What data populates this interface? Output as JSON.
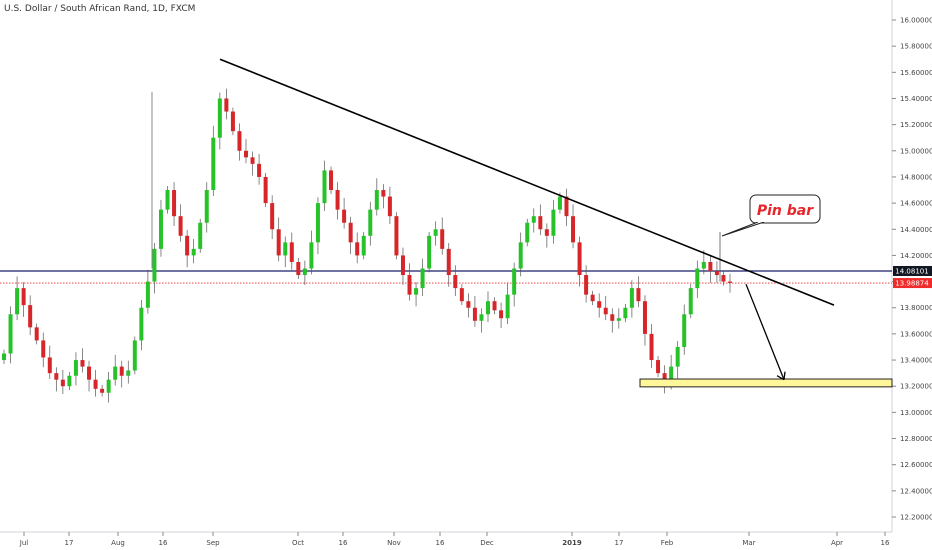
{
  "chart_data": {
    "type": "candlestick",
    "title": "U.S. Dollar / South African Rand, 1D, FXCM",
    "y_axis": {
      "side": "right",
      "ylim": [
        12.1,
        16.1
      ],
      "ticks": [
        "16.00000",
        "15.80000",
        "15.60000",
        "15.40000",
        "15.20000",
        "15.00000",
        "14.80000",
        "14.60000",
        "14.40000",
        "14.20000",
        "14.00000",
        "13.80000",
        "13.60000",
        "13.40000",
        "13.20000",
        "13.00000",
        "12.80000",
        "12.60000",
        "12.40000",
        "12.20000"
      ]
    },
    "x_axis": {
      "ticks": [
        "Jul",
        "17",
        "Aug",
        "16",
        "Sep",
        "Oct",
        "16",
        "Nov",
        "16",
        "Dec",
        "2019",
        "17",
        "Feb",
        "Mar",
        "Apr",
        "16"
      ]
    },
    "price_labels": [
      {
        "value": "14.08101",
        "role": "horizontal-level",
        "color": "#131722"
      },
      {
        "value": "13.98874",
        "role": "last-price",
        "color": "#ef2b2b"
      }
    ],
    "annotations": [
      {
        "type": "callout",
        "text": "Pin bar",
        "color": "#e6262a"
      },
      {
        "type": "trendline",
        "from": [
          "Sep",
          15.7
        ],
        "to": [
          "Apr",
          13.82
        ],
        "color": "#000000"
      },
      {
        "type": "arrow",
        "from": [
          "Feb 28",
          13.98
        ],
        "to": [
          "Mar 13",
          13.24
        ],
        "color": "#000000"
      },
      {
        "type": "zone",
        "low": 13.19,
        "high": 13.25,
        "from": "Jan 24",
        "to": "end",
        "color": "#fff79a"
      }
    ],
    "candles_close_path": [
      13.45,
      13.75,
      13.95,
      13.82,
      13.65,
      13.55,
      13.42,
      13.3,
      13.25,
      13.2,
      13.28,
      13.4,
      13.35,
      13.25,
      13.18,
      13.15,
      13.25,
      13.35,
      13.28,
      13.32,
      13.55,
      13.8,
      14.0,
      14.25,
      14.55,
      14.7,
      14.5,
      14.35,
      14.2,
      14.25,
      14.45,
      14.7,
      15.1,
      15.4,
      15.3,
      15.15,
      15.0,
      14.95,
      14.9,
      14.8,
      14.6,
      14.4,
      14.2,
      14.3,
      14.15,
      14.05,
      14.1,
      14.3,
      14.6,
      14.85,
      14.7,
      14.55,
      14.45,
      14.3,
      14.2,
      14.35,
      14.55,
      14.7,
      14.65,
      14.5,
      14.2,
      14.05,
      13.9,
      13.95,
      14.1,
      14.35,
      14.4,
      14.25,
      14.05,
      13.95,
      13.85,
      13.8,
      13.7,
      13.75,
      13.85,
      13.78,
      13.72,
      13.9,
      14.1,
      14.3,
      14.45,
      14.5,
      14.4,
      14.35,
      14.55,
      14.65,
      14.5,
      14.3,
      14.05,
      13.9,
      13.85,
      13.8,
      13.75,
      13.7,
      13.72,
      13.8,
      13.95,
      13.85,
      13.6,
      13.4,
      13.3,
      13.22,
      13.35,
      13.5,
      13.75,
      13.95,
      14.1,
      14.15,
      14.08,
      14.05,
      14.0,
      13.99
    ]
  }
}
